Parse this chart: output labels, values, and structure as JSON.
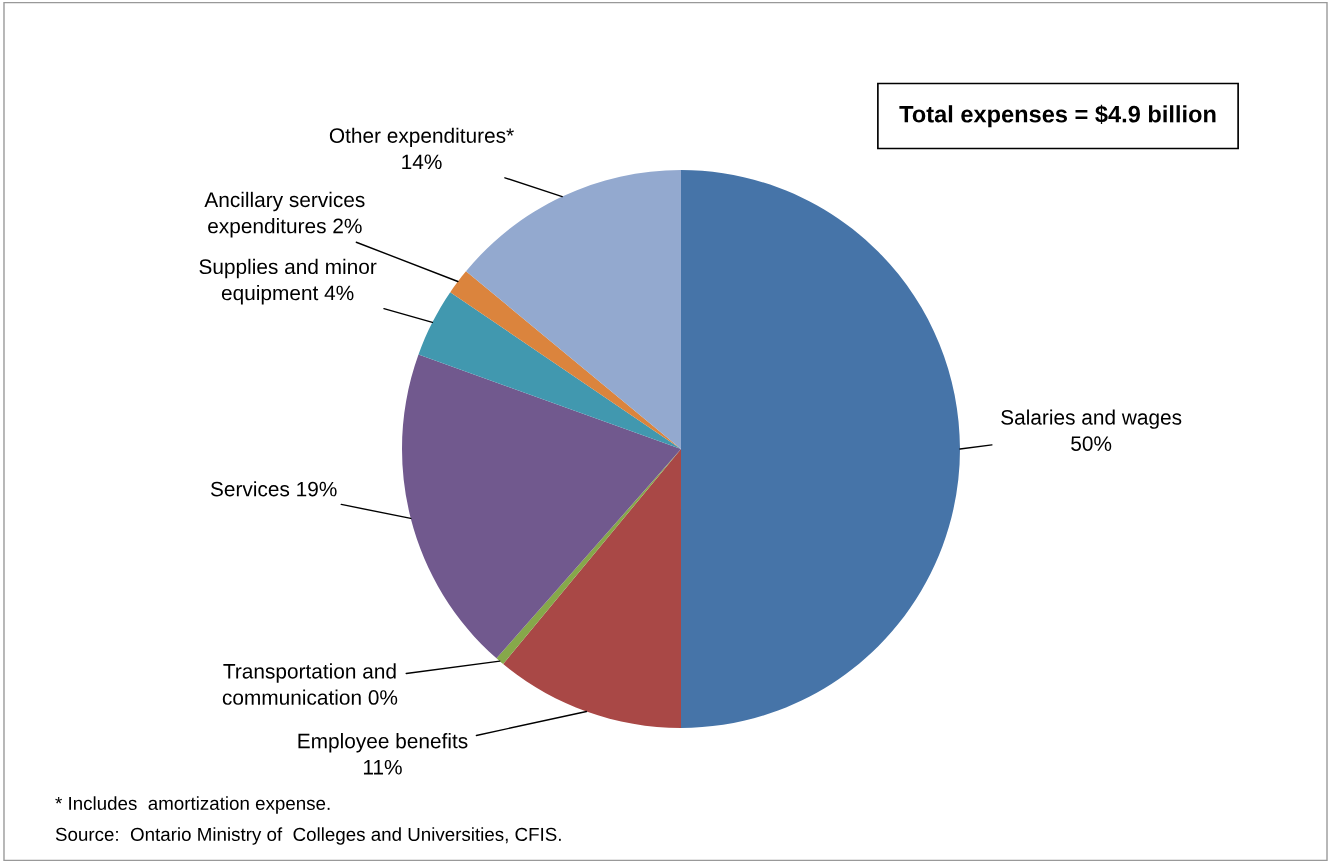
{
  "chart_data": {
    "type": "pie",
    "title": "Total expenses = $4.9 billion",
    "categories": [
      "Salaries and wages",
      "Employee benefits",
      "Transportation and communication",
      "Services",
      "Supplies and minor equipment",
      "Ancillary services expenditures",
      "Other expenditures*"
    ],
    "values": [
      50,
      11,
      0.5,
      19,
      4,
      1.5,
      14
    ],
    "value_labels": [
      "50%",
      "11%",
      "0%",
      "19%",
      "4%",
      "2%",
      "14%"
    ],
    "colors": [
      "#4674a8",
      "#a94846",
      "#86a84a",
      "#71598e",
      "#4198af",
      "#db843d",
      "#93a9cf"
    ],
    "annotations": [
      "* Includes  amortization expense.",
      "Source:  Ontario Ministry of  Colleges and Universities, CFIS."
    ]
  }
}
